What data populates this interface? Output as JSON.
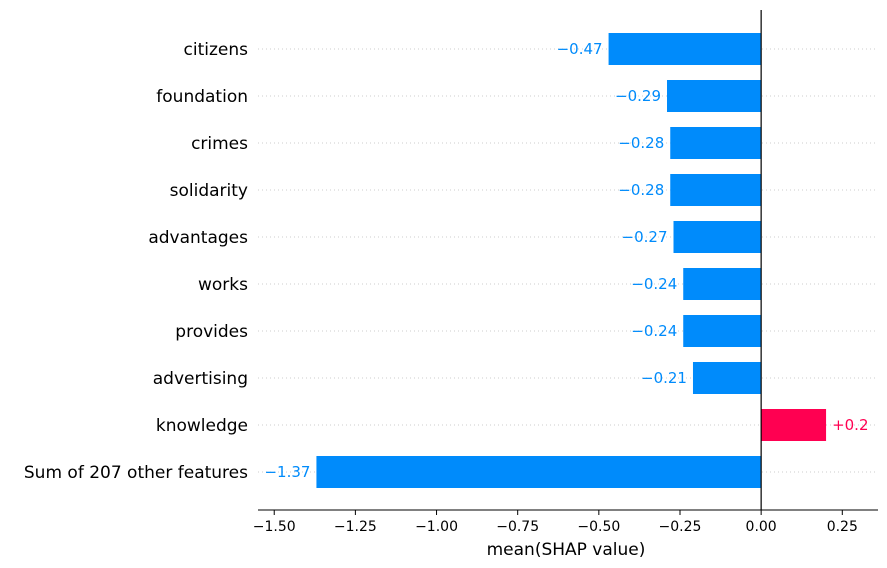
{
  "chart_data": {
    "type": "bar",
    "orientation": "horizontal",
    "categories": [
      "citizens",
      "foundation",
      "crimes",
      "solidarity",
      "advantages",
      "works",
      "provides",
      "advertising",
      "knowledge",
      "Sum of 207 other features"
    ],
    "values": [
      -0.47,
      -0.29,
      -0.28,
      -0.28,
      -0.27,
      -0.24,
      -0.24,
      -0.21,
      0.2,
      -1.37
    ],
    "value_labels": [
      "−0.47",
      "−0.29",
      "−0.28",
      "−0.28",
      "−0.27",
      "−0.24",
      "−0.24",
      "−0.21",
      "+0.2",
      "−1.37"
    ],
    "xlabel": "mean(SHAP value)",
    "xlim": [
      -1.55,
      0.36
    ],
    "xticks": [
      -1.5,
      -1.25,
      -1.0,
      -0.75,
      -0.5,
      -0.25,
      0.0,
      0.25
    ],
    "xtick_labels": [
      "−1.50",
      "−1.25",
      "−1.00",
      "−0.75",
      "−0.50",
      "−0.25",
      "0.00",
      "0.25"
    ],
    "colors": {
      "negative": "#008bfb",
      "positive": "#ff0051",
      "zero_line": "#000000",
      "grid": "#cccccc"
    },
    "grid": "dotted horizontal",
    "zero_line": true
  }
}
